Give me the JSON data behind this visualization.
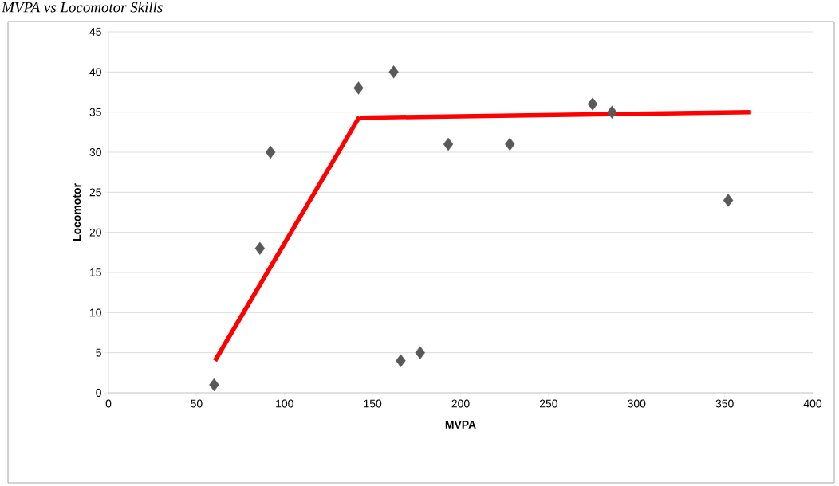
{
  "chart_data": {
    "type": "scatter",
    "title": "MVPA vs Locomotor Skills",
    "xlabel": "MVPA",
    "ylabel": "Locomotor",
    "xlim": [
      0,
      400
    ],
    "xticks": [
      0,
      50,
      100,
      150,
      200,
      250,
      300,
      350,
      400
    ],
    "ylim": [
      0,
      45
    ],
    "yticks": [
      0,
      5,
      10,
      15,
      20,
      25,
      30,
      35,
      40,
      45
    ],
    "grid": "y",
    "marker": "diamond",
    "series": [
      {
        "color": "#595959",
        "x": [
          60,
          86,
          92,
          142,
          162,
          166,
          177,
          193,
          228,
          275,
          286,
          352
        ],
        "values": [
          1,
          18,
          30,
          38,
          40,
          4,
          5,
          31,
          31,
          36,
          35,
          24
        ]
      },
      {
        "type": "line",
        "color": "#ff0000",
        "marker": "none",
        "line_style": "solid",
        "x": [
          60.5,
          142.5
        ],
        "values": [
          4,
          34.4
        ]
      },
      {
        "type": "line",
        "color": "#ff0000",
        "marker": "none",
        "line_style": "solid",
        "x": [
          143,
          365
        ],
        "values": [
          34.3,
          35
        ]
      }
    ]
  }
}
